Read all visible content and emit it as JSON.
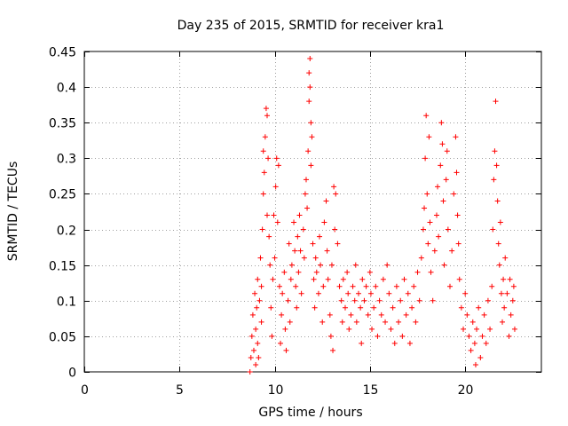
{
  "chart_data": {
    "type": "scatter",
    "title": "Day 235 of 2015, SRMTID for receiver kra1",
    "xlabel": "GPS time / hours",
    "ylabel": "SRMTID / TECUs",
    "xlim": [
      0,
      24
    ],
    "ylim": [
      0,
      0.45
    ],
    "xticks": [
      0,
      5,
      10,
      15,
      20
    ],
    "xtick_labels": [
      "0",
      "5",
      "10",
      "15",
      "20"
    ],
    "yticks": [
      0,
      0.05,
      0.1,
      0.15,
      0.2,
      0.25,
      0.3,
      0.35,
      0.4,
      0.45
    ],
    "ytick_labels": [
      "0",
      "0.05",
      "0.1",
      "0.15",
      "0.2",
      "0.25",
      "0.3",
      "0.35",
      "0.4",
      "0.45"
    ],
    "grid": true,
    "marker": "+",
    "series": [
      {
        "name": "SRMTID",
        "color": "#ff0000",
        "points": [
          [
            8.7,
            0.0
          ],
          [
            8.75,
            0.02
          ],
          [
            8.8,
            0.05
          ],
          [
            8.85,
            0.08
          ],
          [
            8.9,
            0.03
          ],
          [
            8.95,
            0.11
          ],
          [
            9.0,
            0.06
          ],
          [
            9.0,
            0.01
          ],
          [
            9.05,
            0.09
          ],
          [
            9.1,
            0.13
          ],
          [
            9.1,
            0.04
          ],
          [
            9.15,
            0.02
          ],
          [
            9.2,
            0.1
          ],
          [
            9.25,
            0.16
          ],
          [
            9.3,
            0.12
          ],
          [
            9.3,
            0.07
          ],
          [
            9.35,
            0.2
          ],
          [
            9.4,
            0.31
          ],
          [
            9.4,
            0.25
          ],
          [
            9.45,
            0.28
          ],
          [
            9.5,
            0.33
          ],
          [
            9.55,
            0.37
          ],
          [
            9.6,
            0.36
          ],
          [
            9.6,
            0.22
          ],
          [
            9.65,
            0.3
          ],
          [
            9.7,
            0.19
          ],
          [
            9.75,
            0.15
          ],
          [
            9.8,
            0.09
          ],
          [
            9.85,
            0.05
          ],
          [
            9.9,
            0.13
          ],
          [
            9.95,
            0.22
          ],
          [
            10.0,
            0.16
          ],
          [
            10.05,
            0.26
          ],
          [
            10.1,
            0.3
          ],
          [
            10.15,
            0.21
          ],
          [
            10.2,
            0.29
          ],
          [
            10.25,
            0.12
          ],
          [
            10.3,
            0.04
          ],
          [
            10.35,
            0.08
          ],
          [
            10.4,
            0.11
          ],
          [
            10.5,
            0.14
          ],
          [
            10.55,
            0.06
          ],
          [
            10.6,
            0.03
          ],
          [
            10.7,
            0.1
          ],
          [
            10.75,
            0.18
          ],
          [
            10.8,
            0.07
          ],
          [
            10.85,
            0.13
          ],
          [
            10.9,
            0.15
          ],
          [
            11.0,
            0.21
          ],
          [
            11.05,
            0.17
          ],
          [
            11.1,
            0.12
          ],
          [
            11.15,
            0.09
          ],
          [
            11.2,
            0.19
          ],
          [
            11.25,
            0.14
          ],
          [
            11.3,
            0.22
          ],
          [
            11.35,
            0.17
          ],
          [
            11.4,
            0.11
          ],
          [
            11.5,
            0.2
          ],
          [
            11.55,
            0.16
          ],
          [
            11.6,
            0.25
          ],
          [
            11.65,
            0.27
          ],
          [
            11.7,
            0.23
          ],
          [
            11.75,
            0.31
          ],
          [
            11.8,
            0.38
          ],
          [
            11.8,
            0.42
          ],
          [
            11.85,
            0.44
          ],
          [
            11.85,
            0.4
          ],
          [
            11.9,
            0.35
          ],
          [
            11.9,
            0.29
          ],
          [
            11.95,
            0.33
          ],
          [
            12.0,
            0.18
          ],
          [
            12.05,
            0.13
          ],
          [
            12.1,
            0.09
          ],
          [
            12.15,
            0.16
          ],
          [
            12.2,
            0.14
          ],
          [
            12.3,
            0.11
          ],
          [
            12.35,
            0.19
          ],
          [
            12.4,
            0.15
          ],
          [
            12.5,
            0.07
          ],
          [
            12.55,
            0.12
          ],
          [
            12.6,
            0.21
          ],
          [
            12.7,
            0.24
          ],
          [
            12.75,
            0.17
          ],
          [
            12.8,
            0.13
          ],
          [
            12.9,
            0.08
          ],
          [
            12.95,
            0.05
          ],
          [
            13.0,
            0.15
          ],
          [
            13.05,
            0.03
          ],
          [
            13.1,
            0.26
          ],
          [
            13.15,
            0.2
          ],
          [
            13.2,
            0.25
          ],
          [
            13.3,
            0.18
          ],
          [
            13.4,
            0.12
          ],
          [
            13.5,
            0.1
          ],
          [
            13.55,
            0.07
          ],
          [
            13.6,
            0.13
          ],
          [
            13.7,
            0.09
          ],
          [
            13.8,
            0.14
          ],
          [
            13.85,
            0.11
          ],
          [
            13.9,
            0.06
          ],
          [
            14.0,
            0.08
          ],
          [
            14.1,
            0.12
          ],
          [
            14.2,
            0.1
          ],
          [
            14.25,
            0.15
          ],
          [
            14.3,
            0.07
          ],
          [
            14.4,
            0.11
          ],
          [
            14.5,
            0.09
          ],
          [
            14.55,
            0.04
          ],
          [
            14.6,
            0.13
          ],
          [
            14.7,
            0.1
          ],
          [
            14.8,
            0.12
          ],
          [
            14.9,
            0.08
          ],
          [
            15.0,
            0.14
          ],
          [
            15.05,
            0.11
          ],
          [
            15.1,
            0.06
          ],
          [
            15.2,
            0.09
          ],
          [
            15.3,
            0.12
          ],
          [
            15.4,
            0.05
          ],
          [
            15.5,
            0.1
          ],
          [
            15.6,
            0.08
          ],
          [
            15.7,
            0.13
          ],
          [
            15.8,
            0.07
          ],
          [
            15.9,
            0.15
          ],
          [
            16.0,
            0.11
          ],
          [
            16.1,
            0.06
          ],
          [
            16.2,
            0.09
          ],
          [
            16.3,
            0.04
          ],
          [
            16.4,
            0.12
          ],
          [
            16.5,
            0.07
          ],
          [
            16.6,
            0.1
          ],
          [
            16.7,
            0.05
          ],
          [
            16.8,
            0.13
          ],
          [
            16.9,
            0.08
          ],
          [
            17.0,
            0.11
          ],
          [
            17.1,
            0.04
          ],
          [
            17.2,
            0.09
          ],
          [
            17.3,
            0.12
          ],
          [
            17.4,
            0.07
          ],
          [
            17.5,
            0.14
          ],
          [
            17.6,
            0.1
          ],
          [
            17.7,
            0.16
          ],
          [
            17.8,
            0.2
          ],
          [
            17.85,
            0.23
          ],
          [
            17.9,
            0.3
          ],
          [
            17.95,
            0.36
          ],
          [
            18.0,
            0.25
          ],
          [
            18.05,
            0.18
          ],
          [
            18.1,
            0.33
          ],
          [
            18.15,
            0.21
          ],
          [
            18.2,
            0.14
          ],
          [
            18.3,
            0.1
          ],
          [
            18.4,
            0.17
          ],
          [
            18.5,
            0.22
          ],
          [
            18.55,
            0.26
          ],
          [
            18.6,
            0.19
          ],
          [
            18.7,
            0.29
          ],
          [
            18.75,
            0.35
          ],
          [
            18.8,
            0.32
          ],
          [
            18.85,
            0.24
          ],
          [
            18.9,
            0.15
          ],
          [
            19.0,
            0.27
          ],
          [
            19.05,
            0.31
          ],
          [
            19.1,
            0.2
          ],
          [
            19.2,
            0.12
          ],
          [
            19.3,
            0.17
          ],
          [
            19.4,
            0.25
          ],
          [
            19.5,
            0.33
          ],
          [
            19.55,
            0.28
          ],
          [
            19.6,
            0.22
          ],
          [
            19.65,
            0.18
          ],
          [
            19.7,
            0.13
          ],
          [
            19.8,
            0.09
          ],
          [
            19.9,
            0.06
          ],
          [
            20.0,
            0.11
          ],
          [
            20.1,
            0.08
          ],
          [
            20.2,
            0.05
          ],
          [
            20.3,
            0.03
          ],
          [
            20.4,
            0.07
          ],
          [
            20.5,
            0.04
          ],
          [
            20.55,
            0.01
          ],
          [
            20.6,
            0.06
          ],
          [
            20.7,
            0.09
          ],
          [
            20.8,
            0.02
          ],
          [
            20.9,
            0.05
          ],
          [
            21.0,
            0.08
          ],
          [
            21.1,
            0.04
          ],
          [
            21.2,
            0.1
          ],
          [
            21.3,
            0.06
          ],
          [
            21.4,
            0.12
          ],
          [
            21.45,
            0.2
          ],
          [
            21.5,
            0.27
          ],
          [
            21.55,
            0.31
          ],
          [
            21.6,
            0.38
          ],
          [
            21.65,
            0.29
          ],
          [
            21.7,
            0.24
          ],
          [
            21.75,
            0.18
          ],
          [
            21.8,
            0.15
          ],
          [
            21.85,
            0.21
          ],
          [
            21.9,
            0.11
          ],
          [
            21.95,
            0.07
          ],
          [
            22.0,
            0.13
          ],
          [
            22.05,
            0.09
          ],
          [
            22.1,
            0.16
          ],
          [
            22.2,
            0.11
          ],
          [
            22.3,
            0.05
          ],
          [
            22.35,
            0.13
          ],
          [
            22.4,
            0.08
          ],
          [
            22.5,
            0.1
          ],
          [
            22.55,
            0.12
          ],
          [
            22.6,
            0.06
          ]
        ]
      }
    ]
  }
}
